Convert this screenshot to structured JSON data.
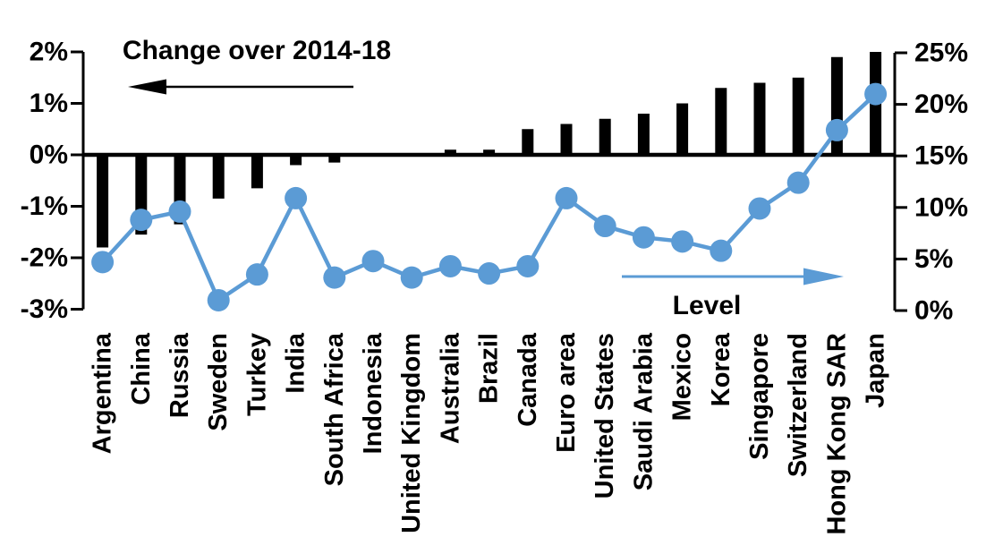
{
  "chart_data": {
    "type": "combo-bar-line",
    "title": "Change over 2014-18",
    "categories": [
      "Argentina",
      "China",
      "Russia",
      "Sweden",
      "Turkey",
      "India",
      "South Africa",
      "Indonesia",
      "United Kingdom",
      "Australia",
      "Brazil",
      "Canada",
      "Euro area",
      "United States",
      "Saudi Arabia",
      "Mexico",
      "Korea",
      "Singapore",
      "Switzerland",
      "Hong Kong SAR",
      "Japan"
    ],
    "series": [
      {
        "name": "Change over 2014-18",
        "type": "bar",
        "axis": "left",
        "color": "#000000",
        "values": [
          -1.8,
          -1.55,
          -1.35,
          -0.85,
          -0.65,
          -0.2,
          -0.15,
          0,
          0,
          0.1,
          0.1,
          0.5,
          0.6,
          0.7,
          0.8,
          1.0,
          1.3,
          1.4,
          1.5,
          1.9,
          2.0
        ]
      },
      {
        "name": "Level",
        "type": "line",
        "axis": "right",
        "color": "#5B9BD5",
        "values": [
          4.7,
          8.8,
          9.6,
          1.0,
          3.5,
          10.9,
          3.2,
          4.8,
          3.2,
          4.3,
          3.6,
          4.3,
          10.9,
          8.2,
          7.1,
          6.7,
          5.8,
          9.9,
          12.4,
          17.5,
          21.0
        ]
      }
    ],
    "left_axis": {
      "min": -3,
      "max": 2,
      "ticks": [
        {
          "label": "2%",
          "value": 2
        },
        {
          "label": "1%",
          "value": 1
        },
        {
          "label": "0%",
          "value": 0
        },
        {
          "label": "-1%",
          "value": -1
        },
        {
          "label": "-2%",
          "value": -2
        },
        {
          "label": "-3%",
          "value": -3
        }
      ]
    },
    "right_axis": {
      "min": 0,
      "max": 25,
      "ticks": [
        {
          "label": "25%",
          "value": 25
        },
        {
          "label": "20%",
          "value": 20
        },
        {
          "label": "15%",
          "value": 15
        },
        {
          "label": "10%",
          "value": 10
        },
        {
          "label": "5%",
          "value": 5
        },
        {
          "label": "0%",
          "value": 0
        }
      ]
    },
    "annotations": [
      {
        "text": "Change over 2014-18",
        "arrow_direction": "left",
        "arrow_color": "#000000"
      },
      {
        "text": "Level",
        "arrow_direction": "right",
        "arrow_color": "#5B9BD5"
      }
    ],
    "layout_hints": {
      "grid": false,
      "zero_line_left_aligns_with": "15% right axis"
    }
  }
}
